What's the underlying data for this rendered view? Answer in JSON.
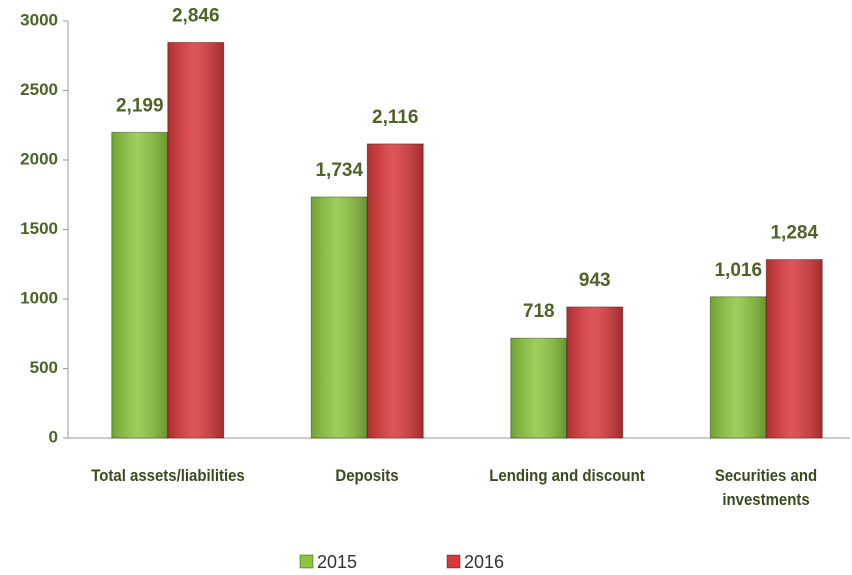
{
  "chart_data": {
    "type": "bar",
    "categories": [
      "Total assets/liabilities",
      "Deposits",
      "Lending and discount",
      "Securities and investments"
    ],
    "series": [
      {
        "name": "2015",
        "color": "#8cc63f",
        "values": [
          2199,
          1734,
          718,
          1016
        ],
        "value_labels": [
          "2,199",
          "1,734",
          "718",
          "1,016"
        ]
      },
      {
        "name": "2016",
        "color": "#d9383a",
        "values": [
          2846,
          2116,
          943,
          1284
        ],
        "value_labels": [
          "2,846",
          "2,116",
          "943",
          "1,284"
        ]
      }
    ],
    "ylim": [
      0,
      3000
    ],
    "yticks": [
      0,
      500,
      1000,
      1500,
      2000,
      2500,
      3000
    ],
    "grid": false
  }
}
